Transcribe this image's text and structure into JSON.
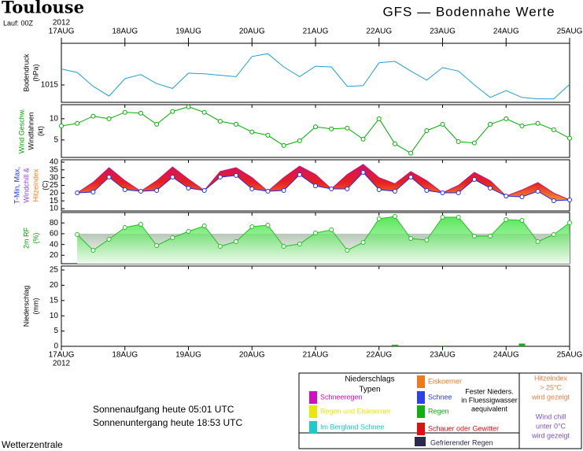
{
  "header": {
    "title": "Toulouse",
    "run": "Lauf: 00Z",
    "subtitle": "GFS — Bodennahe Werte"
  },
  "time_axis": {
    "year": "2012",
    "xlim": [
      0,
      192
    ],
    "x": [
      0,
      6,
      12,
      18,
      24,
      30,
      36,
      42,
      48,
      54,
      60,
      66,
      72,
      78,
      84,
      90,
      96,
      102,
      108,
      114,
      120,
      126,
      132,
      138,
      144,
      150,
      156,
      162,
      168,
      174,
      180,
      186,
      192
    ],
    "xticks": [
      {
        "value": 0,
        "label": "17AUG"
      },
      {
        "value": 24,
        "label": "18AUG"
      },
      {
        "value": 48,
        "label": "19AUG"
      },
      {
        "value": 72,
        "label": "20AUG"
      },
      {
        "value": 96,
        "label": "21AUG"
      },
      {
        "value": 120,
        "label": "22AUG"
      },
      {
        "value": 144,
        "label": "23AUG"
      },
      {
        "value": 168,
        "label": "24AUG"
      },
      {
        "value": 192,
        "label": "25AUG"
      }
    ]
  },
  "chart_data": [
    {
      "type": "line",
      "ylabel": [
        {
          "text": "Bodendruck",
          "color": "#000000"
        },
        {
          "text": "(hPa)",
          "color": "#000000"
        }
      ],
      "ylim": [
        1012.5,
        1021
      ],
      "yticks": [
        1015
      ],
      "series": [
        {
          "color": "#1e9fd8",
          "markers": false,
          "values": [
            1017.3,
            1016.8,
            1014.8,
            1013.4,
            1015.9,
            1016.5,
            1015.2,
            1014.5,
            1016.7,
            1016.6,
            1016.4,
            1016.2,
            1019.1,
            1019.5,
            1017.6,
            1016.2,
            1017.7,
            1017.6,
            1014.8,
            1014.9,
            1018.2,
            1018.4,
            1017.0,
            1015.7,
            1017.5,
            1017.0,
            1015.0,
            1013.2,
            1014.2,
            1013.2,
            1013.0,
            1013.0,
            1015.1
          ]
        }
      ]
    },
    {
      "type": "line",
      "ylabel": [
        {
          "text": "Wind Geschw.",
          "color": "#00a000"
        },
        {
          "text": "Windfahnen",
          "color": "#000000"
        },
        {
          "text": "(kt)",
          "color": "#000000"
        }
      ],
      "ylim": [
        0.9,
        13.3
      ],
      "yticks": [
        5,
        10
      ],
      "series": [
        {
          "color": "#00b000",
          "markers": true,
          "values": [
            8.3,
            8.9,
            10.6,
            10.0,
            11.5,
            11.3,
            8.7,
            11.7,
            12.8,
            11.5,
            9.4,
            8.7,
            6.9,
            6.1,
            3.7,
            4.8,
            8.1,
            7.6,
            7.8,
            5.2,
            10.0,
            4.1,
            1.9,
            7.2,
            8.7,
            4.6,
            4.3,
            8.7,
            10.0,
            8.3,
            8.9,
            7.4,
            5.4
          ]
        }
      ]
    },
    {
      "type": "range",
      "ylabel": [
        {
          "text": "T-Min, Max,",
          "color": "#2030e0"
        },
        {
          "text": "Windchill &",
          "color": "#9040d0"
        },
        {
          "text": "Hitzeindex",
          "color": "#f07820"
        },
        {
          "text": "(C)",
          "color": "#000000"
        }
      ],
      "ylim": [
        8.5,
        41.5
      ],
      "yticks": [
        10,
        15,
        20,
        25,
        30,
        35,
        40
      ],
      "series": [
        {
          "color": "#2030e0",
          "markers": true,
          "values": [
            null,
            20.2,
            20.7,
            30.3,
            22.2,
            21.2,
            21.7,
            30.3,
            23.2,
            21.7,
            30.3,
            31.4,
            22.7,
            21.2,
            21.7,
            31.9,
            24.7,
            22.7,
            22.7,
            33.4,
            22.2,
            21.2,
            30.3,
            21.7,
            20.2,
            20.2,
            28.8,
            23.2,
            18.1,
            17.6,
            21.2,
            15.1,
            15.6
          ]
        },
        {
          "color": "#d0106a",
          "markers": false,
          "values": [
            null,
            20.2,
            27,
            36.4,
            28,
            21.2,
            28,
            36.9,
            29,
            21.7,
            34,
            36.4,
            30,
            21.2,
            30,
            37.4,
            32,
            22.7,
            32,
            38.5,
            30,
            26,
            33.9,
            28,
            20.2,
            25,
            33.4,
            28,
            18.1,
            22,
            26.8,
            20,
            15.6
          ]
        }
      ]
    },
    {
      "type": "area",
      "ylabel": [
        {
          "text": "2m RF",
          "color": "#00a000"
        },
        {
          "text": "(%)",
          "color": "#00a000"
        }
      ],
      "ylim": [
        4.4,
        99.3
      ],
      "yticks": [
        20,
        40,
        60,
        80
      ],
      "series": [
        {
          "color": "#20c020",
          "markers": true,
          "values": [
            null,
            58.4,
            29.2,
            49.6,
            71.5,
            77.4,
            38.0,
            52.6,
            64.2,
            74.5,
            36.5,
            45.3,
            73.0,
            75.9,
            36.5,
            40.9,
            61.3,
            67.2,
            29.2,
            43.8,
            87.6,
            92.0,
            51.1,
            48.2,
            90.5,
            90.5,
            55.5,
            55.5,
            86.1,
            84.7,
            45.3,
            58.4,
            80.3
          ]
        }
      ]
    },
    {
      "type": "bar",
      "ylabel": [
        {
          "text": "Niederschlag",
          "color": "#000000"
        },
        {
          "text": "(mm)",
          "color": "#000000"
        }
      ],
      "ylim": [
        0,
        26.3
      ],
      "yticks": [
        0,
        5,
        10,
        15,
        20,
        25
      ],
      "series": [
        {
          "color": "#10b010",
          "values": [
            0,
            0,
            0,
            0,
            0,
            0,
            0,
            0,
            0,
            0,
            0,
            0,
            0,
            0,
            0,
            0,
            0,
            0,
            0,
            0,
            0,
            0.5,
            0,
            0,
            0.2,
            0,
            0,
            0,
            0,
            0.9,
            0,
            0,
            0
          ]
        }
      ]
    }
  ],
  "sun": {
    "rise": "Sonnenaufgang heute 05:01 UTC",
    "set": "Sonnenuntergang heute 18:53 UTC"
  },
  "footer": "Wetterzentrale",
  "legend": {
    "title": [
      "Niederschlags",
      "Typen"
    ],
    "items": [
      {
        "label": "Schneeregen",
        "color": "#d010c0"
      },
      {
        "label": "Regen und Eiskoerner",
        "color": "#e8e800"
      },
      {
        "label": "Im Bergland Schnee",
        "color": "#20c8c8"
      },
      {
        "label": "Eiskoerner",
        "color": "#f07820"
      },
      {
        "label": "Schnee",
        "color": "#3040e8"
      },
      {
        "label": "Regen",
        "color": "#10b010"
      },
      {
        "label": "Schauer oder Gewitter",
        "color": "#e01010"
      },
      {
        "label": "Gefrierender Regen",
        "color": "#2a2a50"
      }
    ],
    "note": [
      "Fester Nieders.",
      "in Fluessigwasser",
      "aequivalent"
    ],
    "heat": {
      "lines": [
        "Hitzeindex",
        "> 25°C",
        "wird gezeigt"
      ],
      "color": "#f08040"
    },
    "chill": {
      "lines": [
        "Wind chill",
        "unter 0°C",
        "wird gezeigt"
      ],
      "color": "#8050d0"
    }
  }
}
